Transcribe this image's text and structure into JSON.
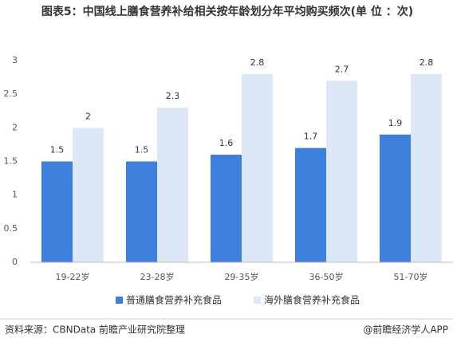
{
  "chart_data": {
    "type": "bar",
    "title": "图表5：中国线上膳食营养补给相关按年龄划分年平均购买频次(单 位 ：次)",
    "categories": [
      "19-22岁",
      "23-28岁",
      "29-35岁",
      "36-50岁",
      "51-70岁"
    ],
    "series": [
      {
        "name": "普通膳食营养补充食品",
        "color": "#3c7fdc",
        "values": [
          1.5,
          1.5,
          1.6,
          1.7,
          1.9
        ]
      },
      {
        "name": "海外膳食营养补充食品",
        "color": "#dce8f5",
        "values": [
          2,
          2.3,
          2.8,
          2.7,
          2.8
        ]
      }
    ],
    "ylim": [
      0,
      3
    ],
    "yticks": [
      0,
      0.5,
      1,
      1.5,
      2,
      2.5,
      3
    ],
    "grid": false,
    "source": "资料来源：CBNData 前瞻产业研究院整理",
    "credit": "@前瞻经济学人APP"
  }
}
